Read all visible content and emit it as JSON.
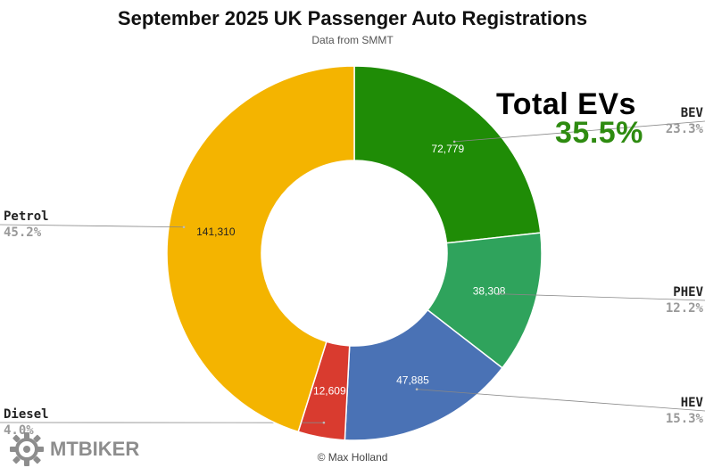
{
  "title": "September 2025 UK Passenger Auto Registrations",
  "subtitle": "Data from SMMT",
  "credit": "© Max Holland",
  "callout": {
    "line1": "Total EVs",
    "line2": "35.5%",
    "color": "#2e8b10"
  },
  "watermark": "MTBIKER",
  "chart_data": {
    "type": "pie",
    "donut": true,
    "start": "12 o'clock",
    "direction": "clockwise",
    "slices": [
      {
        "name": "BEV",
        "value": 72779,
        "value_label": "72,779",
        "percent": "23.3%",
        "color": "#1f8c06",
        "label_color": "#ffffff",
        "legend_side": "right"
      },
      {
        "name": "PHEV",
        "value": 38308,
        "value_label": "38,308",
        "percent": "12.2%",
        "color": "#2fa35c",
        "label_color": "#ffffff",
        "legend_side": "right"
      },
      {
        "name": "HEV",
        "value": 47885,
        "value_label": "47,885",
        "percent": "15.3%",
        "color": "#4a72b5",
        "label_color": "#ffffff",
        "legend_side": "right"
      },
      {
        "name": "Diesel",
        "value": 12609,
        "value_label": "12,609",
        "percent": "4.0%",
        "color": "#d93b2f",
        "label_color": "#ffffff",
        "legend_side": "left"
      },
      {
        "name": "Petrol",
        "value": 141310,
        "value_label": "141,310",
        "percent": "45.2%",
        "color": "#f4b400",
        "label_color": "#222222",
        "legend_side": "left"
      }
    ]
  }
}
